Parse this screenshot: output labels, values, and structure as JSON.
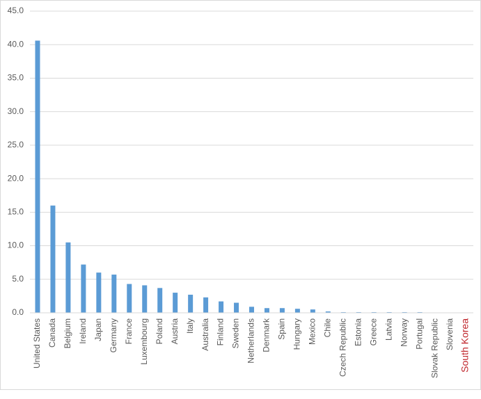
{
  "chart_data": {
    "type": "bar",
    "categories": [
      "United States",
      "Canada",
      "Belgium",
      "Ireland",
      "Japan",
      "Germany",
      "France",
      "Luxembourg",
      "Poland",
      "Austria",
      "Italy",
      "Australia",
      "Finland",
      "Sweden",
      "Netherlands",
      "Denmark",
      "Spain",
      "Hungary",
      "Mexico",
      "Chile",
      "Czech Republic",
      "Estonia",
      "Greece",
      "Latvia",
      "Norway",
      "Portugal",
      "Slovak Republic",
      "Slovenia",
      "South Korea"
    ],
    "values": [
      40.6,
      16.0,
      10.5,
      7.2,
      6.0,
      5.7,
      4.3,
      4.1,
      3.7,
      3.0,
      2.7,
      2.3,
      1.7,
      1.5,
      0.9,
      0.7,
      0.7,
      0.6,
      0.5,
      0.2,
      0.1,
      0.1,
      0.1,
      0.1,
      0.1,
      0.1,
      0,
      0,
      0
    ],
    "color": "#5b9bd5",
    "label_colors": [
      "#595959",
      "#595959",
      "#595959",
      "#595959",
      "#595959",
      "#595959",
      "#595959",
      "#595959",
      "#595959",
      "#595959",
      "#595959",
      "#595959",
      "#595959",
      "#595959",
      "#595959",
      "#595959",
      "#595959",
      "#595959",
      "#595959",
      "#595959",
      "#595959",
      "#595959",
      "#595959",
      "#595959",
      "#595959",
      "#595959",
      "#595959",
      "#595959",
      "#c0272d"
    ],
    "ylim": [
      0,
      45
    ],
    "yticks": [
      {
        "value": 0,
        "label": "0.0"
      },
      {
        "value": 5,
        "label": "5.0"
      },
      {
        "value": 10,
        "label": "10.0"
      },
      {
        "value": 15,
        "label": "15.0"
      },
      {
        "value": 20,
        "label": "20.0"
      },
      {
        "value": 25,
        "label": "25.0"
      },
      {
        "value": 30,
        "label": "30.0"
      },
      {
        "value": 35,
        "label": "35.0"
      },
      {
        "value": 40,
        "label": "40.0"
      },
      {
        "value": 45,
        "label": "45.0"
      }
    ],
    "grid": true
  }
}
